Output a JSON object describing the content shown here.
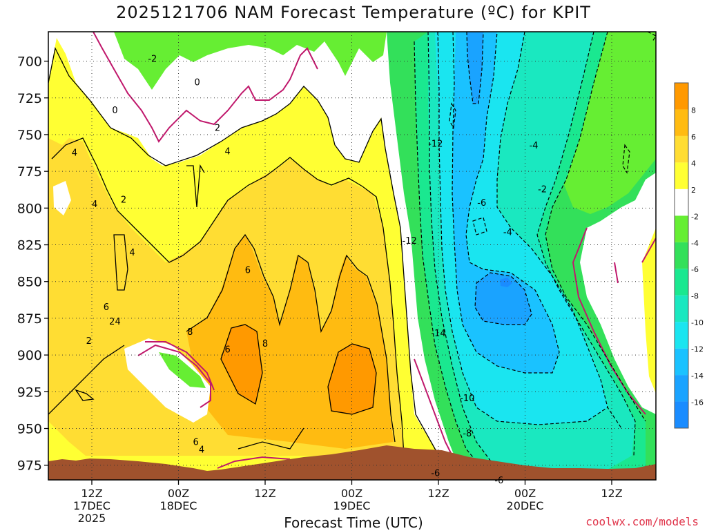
{
  "title": "2025121706 NAM Forecast Temperature (ºC) for KPIT",
  "xlabel": "Forecast Time (UTC)",
  "credit": "coolwx.com/models",
  "chart_data": {
    "type": "heatmap",
    "title": "2025121706 NAM Forecast Temperature (ºC) for KPIT",
    "xlabel": "Forecast Time (UTC)",
    "ylabel": "",
    "ylim": [
      985,
      680
    ],
    "y_ticks": [
      700,
      725,
      750,
      775,
      800,
      825,
      850,
      875,
      900,
      925,
      950,
      975
    ],
    "x_ticks": [
      {
        "lines": [
          "12Z",
          "17DEC",
          "2025"
        ]
      },
      {
        "lines": [
          "00Z",
          "18DEC"
        ]
      },
      {
        "lines": [
          "12Z"
        ]
      },
      {
        "lines": [
          "00Z",
          "19DEC"
        ]
      },
      {
        "lines": [
          "12Z"
        ]
      },
      {
        "lines": [
          "00Z",
          "20DEC"
        ]
      },
      {
        "lines": [
          "12Z"
        ]
      }
    ],
    "colorbar": {
      "levels": [
        -18,
        -16,
        -14,
        -12,
        -10,
        -8,
        -6,
        -4,
        -2,
        2,
        4,
        6,
        8,
        10
      ],
      "labels": [
        "-16",
        "-14",
        "-12",
        "-10",
        "-8",
        "-6",
        "-4",
        "-2",
        "2",
        "4",
        "6",
        "8"
      ],
      "colors": [
        "#1a8cff",
        "#1aa3ff",
        "#1ac2ff",
        "#1ae5f0",
        "#1ae8c0",
        "#1ae890",
        "#33e05a",
        "#66ee33",
        "#ffffff",
        "#ffff33",
        "#ffdd33",
        "#ffbb11",
        "#ff9900"
      ]
    },
    "regions": [
      {
        "name": "cold-green-top",
        "value": -3
      },
      {
        "name": "warm-yellow",
        "value": 3
      },
      {
        "name": "warm-orange",
        "value": 6
      },
      {
        "name": "cold-cyan-core",
        "value": -13
      },
      {
        "name": "cold-blue-core",
        "value": -15
      }
    ],
    "contour_labels": [
      {
        "text": "-2",
        "t": 4.2,
        "p": 698
      },
      {
        "text": "0",
        "t": 1.6,
        "p": 733
      },
      {
        "text": "0",
        "t": 7.3,
        "p": 714
      },
      {
        "text": "2",
        "t": 8.7,
        "p": 745
      },
      {
        "text": "4",
        "t": -1.2,
        "p": 762
      },
      {
        "text": "4",
        "t": 9.4,
        "p": 761
      },
      {
        "text": "4",
        "t": 0.2,
        "p": 797
      },
      {
        "text": "2",
        "t": 2.2,
        "p": 794
      },
      {
        "text": "4",
        "t": 2.8,
        "p": 830
      },
      {
        "text": "6",
        "t": 1.0,
        "p": 867
      },
      {
        "text": "2",
        "t": -0.2,
        "p": 890
      },
      {
        "text": "2",
        "t": 1.4,
        "p": 877
      },
      {
        "text": "4",
        "t": 1.8,
        "p": 877
      },
      {
        "text": "8",
        "t": 6.8,
        "p": 884
      },
      {
        "text": "6",
        "t": 10.8,
        "p": 842
      },
      {
        "text": "6",
        "t": 9.4,
        "p": 896
      },
      {
        "text": "8",
        "t": 12.0,
        "p": 892
      },
      {
        "text": "6",
        "t": 7.2,
        "p": 959
      },
      {
        "text": "4",
        "t": 7.6,
        "p": 964
      },
      {
        "text": "-12",
        "t": 23.8,
        "p": 756
      },
      {
        "text": "-12",
        "t": 22.0,
        "p": 822
      },
      {
        "text": "-14",
        "t": 24.0,
        "p": 885
      },
      {
        "text": "-10",
        "t": 26.0,
        "p": 929
      },
      {
        "text": "-8",
        "t": 26.0,
        "p": 953
      },
      {
        "text": "-6",
        "t": 23.8,
        "p": 980
      },
      {
        "text": "-6",
        "t": 28.2,
        "p": 985
      },
      {
        "text": "-6",
        "t": 27.0,
        "p": 796
      },
      {
        "text": "-4",
        "t": 28.8,
        "p": 816
      },
      {
        "text": "-4",
        "t": 30.6,
        "p": 757
      },
      {
        "text": "-2",
        "t": 31.2,
        "p": 787
      }
    ]
  }
}
